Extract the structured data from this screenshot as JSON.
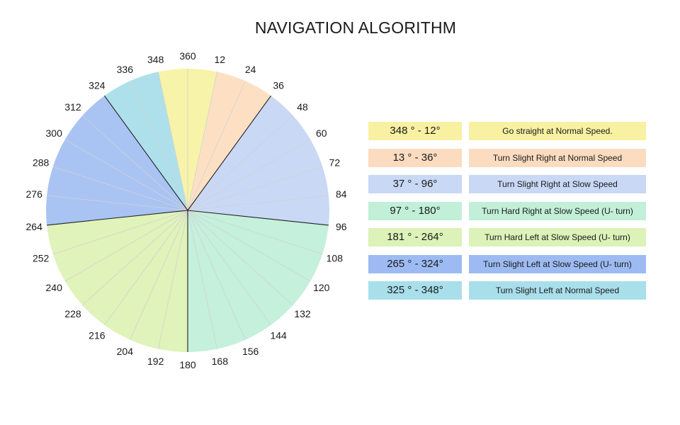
{
  "title": "NAVIGATION ALGORITHM",
  "wheel": {
    "tick_labels": [
      "360",
      "12",
      "24",
      "36",
      "48",
      "60",
      "72",
      "84",
      "96",
      "108",
      "120",
      "132",
      "144",
      "156",
      "168",
      "180",
      "192",
      "204",
      "216",
      "228",
      "240",
      "252",
      "264",
      "276",
      "288",
      "300",
      "312",
      "324",
      "336",
      "348"
    ],
    "degrees_per_division": 12,
    "zones": [
      {
        "from": 348,
        "to": 372,
        "color": "#f7f3a8"
      },
      {
        "from": 12,
        "to": 36,
        "color": "#fde0c4"
      },
      {
        "from": 36,
        "to": 96,
        "color": "#c8d8f5"
      },
      {
        "from": 96,
        "to": 180,
        "color": "#c4f0dc"
      },
      {
        "from": 180,
        "to": 264,
        "color": "#dff3ba"
      },
      {
        "from": 264,
        "to": 324,
        "color": "#a9c3f3"
      },
      {
        "from": 324,
        "to": 348,
        "color": "#aee0ec"
      }
    ],
    "boundary_lines_deg": [
      36,
      96,
      180,
      264,
      324
    ],
    "line_colors": {
      "boundary": "#222222",
      "minor": "#d2d2d2"
    }
  },
  "legend": [
    {
      "range": "348 ° - 12°",
      "action": "Go straight at Normal Speed.",
      "range_color": "#f7f1a1",
      "action_color": "#f7f1a1"
    },
    {
      "range": "13  ° - 36°",
      "action": "Turn Slight Right at Normal Speed",
      "range_color": "#fbdcc0",
      "action_color": "#fbdcc0"
    },
    {
      "range": "37 ° - 96°",
      "action": "Turn Slight Right at Slow Speed",
      "range_color": "#c8d8f5",
      "action_color": "#c8d8f5"
    },
    {
      "range": "97 ° - 180°",
      "action": "Turn Hard Right at Slow Speed (U- turn)",
      "range_color": "#c2efd8",
      "action_color": "#c2efd8"
    },
    {
      "range": "181 ° - 264°",
      "action": "Turn Hard Left at Slow Speed (U- turn)",
      "range_color": "#dcf2b8",
      "action_color": "#dcf2b8"
    },
    {
      "range": "265 °  -  324°",
      "action": "Turn Slight Left at Slow Speed (U- turn)",
      "range_color": "#9dbbf2",
      "action_color": "#9dbbf2"
    },
    {
      "range": "325 ° - 348°",
      "action": "Turn Slight Left at Normal Speed",
      "range_color": "#a9dfeb",
      "action_color": "#a9dfeb"
    }
  ]
}
